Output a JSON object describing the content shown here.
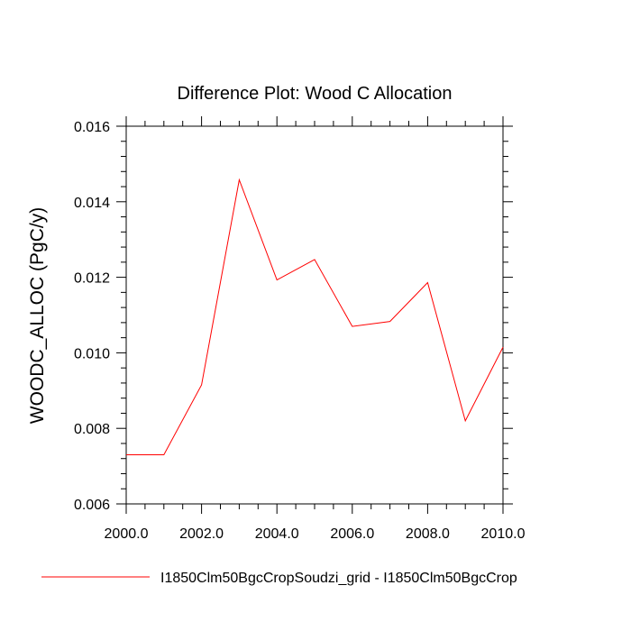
{
  "chart_data": {
    "type": "line",
    "title": "Difference Plot: Wood C Allocation",
    "xlabel": "",
    "ylabel": "WOODC_ALLOC  (PgC/y)",
    "xlim": [
      2000,
      2010
    ],
    "ylim": [
      0.006,
      0.016
    ],
    "xticks": [
      2000,
      2002,
      2004,
      2006,
      2008,
      2010
    ],
    "xtick_labels": [
      "2000.0",
      "2002.0",
      "2004.0",
      "2006.0",
      "2008.0",
      "2010.0"
    ],
    "yticks": [
      0.006,
      0.008,
      0.01,
      0.012,
      0.014,
      0.016
    ],
    "ytick_labels": [
      "0.006",
      "0.008",
      "0.010",
      "0.012",
      "0.014",
      "0.016"
    ],
    "grid": false,
    "legend_position": "bottom",
    "series": [
      {
        "name": "I1850Clm50BgcCropSoudzi_grid - I1850Clm50BgcCrop",
        "color": "#ff0000",
        "x": [
          2000,
          2001,
          2002,
          2003,
          2004,
          2005,
          2006,
          2007,
          2008,
          2009,
          2010
        ],
        "values": [
          0.0073,
          0.0073,
          0.00915,
          0.01458,
          0.01193,
          0.01247,
          0.0107,
          0.01083,
          0.01186,
          0.0082,
          0.01015
        ]
      }
    ]
  }
}
